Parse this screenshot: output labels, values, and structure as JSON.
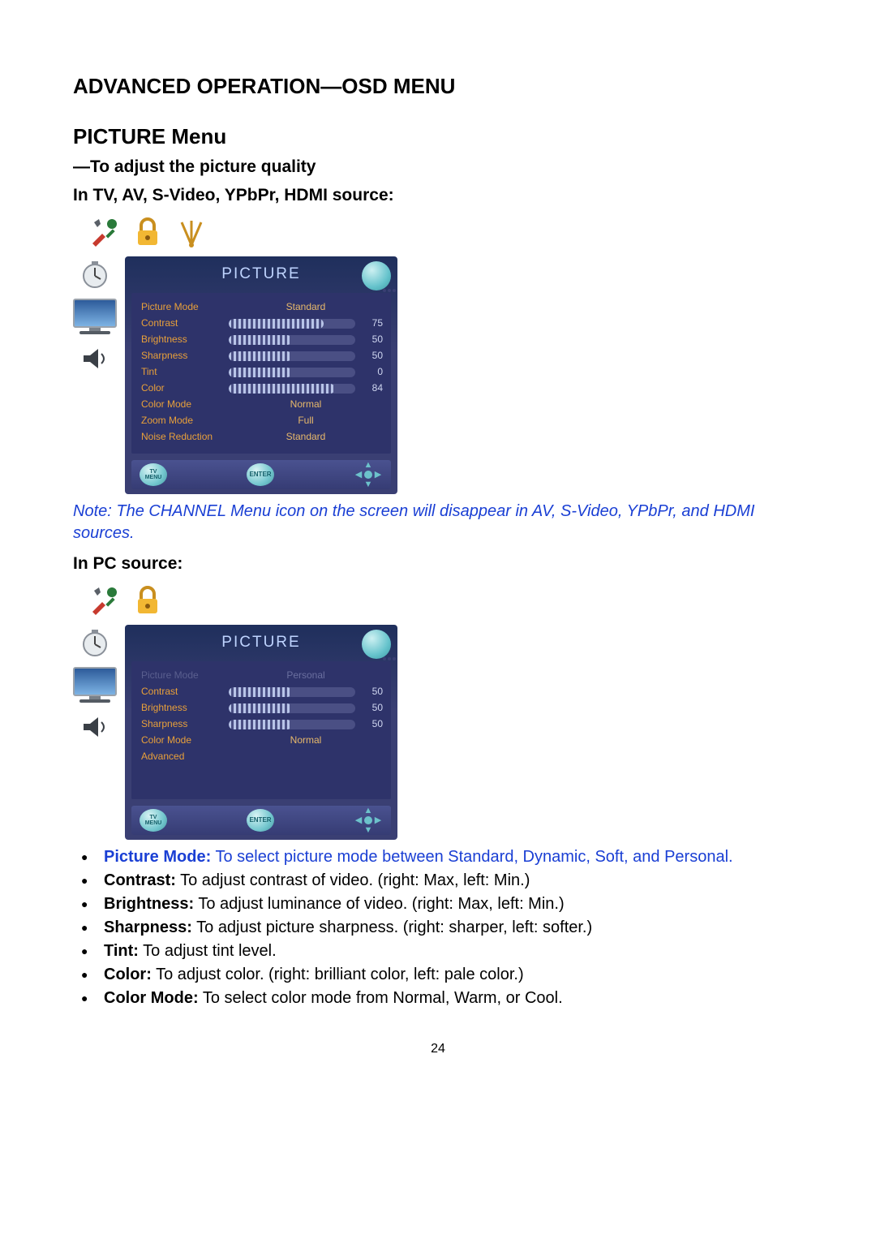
{
  "heading": "ADVANCED OPERATION—OSD MENU",
  "section_title": "PICTURE Menu",
  "subtitle": "—To adjust the picture quality",
  "source_tv": "In TV, AV, S-Video, YPbPr, HDMI source:",
  "source_pc": "In PC source:",
  "panel_title": "PICTURE",
  "footer_tv_menu_l1": "TV",
  "footer_tv_menu_l2": "MENU",
  "footer_enter": "ENTER",
  "osd1": {
    "rows": [
      {
        "label": "Picture Mode",
        "type": "text",
        "value": "Standard"
      },
      {
        "label": "Contrast",
        "type": "slider",
        "value": 75,
        "max": 100
      },
      {
        "label": "Brightness",
        "type": "slider",
        "value": 50,
        "max": 100
      },
      {
        "label": "Sharpness",
        "type": "slider",
        "value": 50,
        "max": 100
      },
      {
        "label": "Tint",
        "type": "slider",
        "value": 0,
        "display": "0",
        "fill": 50,
        "max": 100
      },
      {
        "label": "Color",
        "type": "slider",
        "value": 84,
        "max": 100
      },
      {
        "label": "Color Mode",
        "type": "text",
        "value": "Normal"
      },
      {
        "label": "Zoom Mode",
        "type": "text",
        "value": "Full"
      },
      {
        "label": "Noise Reduction",
        "type": "text",
        "value": "Standard"
      }
    ]
  },
  "osd2": {
    "rows": [
      {
        "label": "Picture Mode",
        "type": "text",
        "value": "Personal",
        "dim": true
      },
      {
        "label": "Contrast",
        "type": "slider",
        "value": 50,
        "max": 100
      },
      {
        "label": "Brightness",
        "type": "slider",
        "value": 50,
        "max": 100
      },
      {
        "label": "Sharpness",
        "type": "slider",
        "value": 50,
        "max": 100
      },
      {
        "label": "Color Mode",
        "type": "text",
        "value": "Normal"
      },
      {
        "label": "Advanced",
        "type": "text",
        "value": ""
      }
    ]
  },
  "note": "Note: The CHANNEL Menu icon on the screen will disappear in AV, S-Video, YPbPr, and HDMI sources.",
  "bullets": [
    {
      "label": "Picture Mode:",
      "text": " To select picture mode between Standard, Dynamic, Soft, and Personal.",
      "blue": true
    },
    {
      "label": "Contrast:",
      "text": " To adjust contrast of video. (right: Max, left: Min.)"
    },
    {
      "label": "Brightness:",
      "text": " To adjust luminance of video. (right: Max, left: Min.)"
    },
    {
      "label": "Sharpness:",
      "text": " To adjust picture sharpness. (right: sharper, left: softer.)"
    },
    {
      "label": "Tint:",
      "text": " To adjust tint level."
    },
    {
      "label": "Color:",
      "text": " To adjust color. (right: brilliant color, left: pale color.)"
    },
    {
      "label": "Color Mode:",
      "text": " To select color mode from Normal, Warm, or Cool."
    }
  ],
  "page_number": "24",
  "colors": {
    "panel_bg_top": "#1f2f5c",
    "panel_bg_mid": "#3a3f73",
    "menu_body": "#2e336a",
    "label_color": "#e8a03a",
    "value_text": "#e8b96a",
    "slider_bg": "#4a4f84",
    "slider_tick": "#b8c4e8",
    "num_color": "#cfd6f0",
    "title_color": "#bfd4ff",
    "note_blue": "#1a3fd4"
  }
}
